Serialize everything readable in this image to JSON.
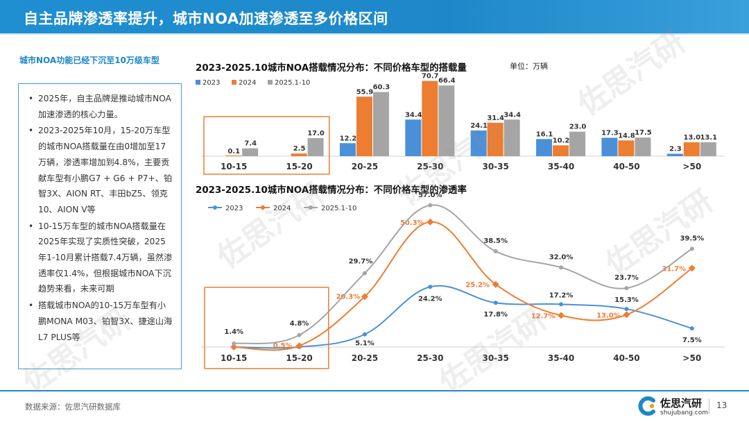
{
  "header": {
    "title": "自主品牌渗透率提升，城市NOA加速渗透至多价格区间"
  },
  "sidebar": {
    "subtitle": "城市NOA功能已经下沉至10万级车型",
    "bullets": [
      "2025年，自主品牌是推动城市NOA加速渗透的核心力量。",
      "2023-2025年10月，15-20万车型的城市NOA搭载量在由0增加至17万辆，渗透率增加到4.8%，主要贡献车型有小鹏G7 + G6 + P7+、铂智3X、AION RT、丰田bZ5、领克10、AION V等",
      "10-15万车型的城市NOA搭载量在2025年实现了实质性突破，2025年1-10月累计搭载7.4万辆，虽然渗透率仅1.4%，但根据城市NOA下沉趋势来看，未来可期",
      "搭载城市NOA的10-15万车型有小鹏MONA M03、铂智3X、捷途山海L7 PLUS等"
    ]
  },
  "chart_data": [
    {
      "type": "bar",
      "title": "2023-2025.10城市NOA搭载情况分布：不同价格车型的搭载量",
      "unit": "单位：万辆",
      "categories": [
        "10-15",
        "15-20",
        "20-25",
        "25-30",
        "30-35",
        "35-40",
        "40-50",
        ">50"
      ],
      "series": [
        {
          "name": "2023",
          "color": "#4a90d9",
          "values": [
            null,
            null,
            12.2,
            34.4,
            24.1,
            16.1,
            17.3,
            2.3
          ],
          "labels": [
            "",
            "",
            "12.2",
            "34.4",
            "24.1",
            "16.1",
            "17.3",
            "2.3"
          ]
        },
        {
          "name": "2024",
          "color": "#ed7d31",
          "values": [
            0.1,
            2.5,
            55.9,
            70.7,
            31.4,
            10.2,
            14.8,
            13.0
          ],
          "labels": [
            "0.1",
            "2.5",
            "55.9",
            "70.7",
            "31.4",
            "10.2",
            "14.8",
            "13.0"
          ]
        },
        {
          "name": "2025.1-10",
          "color": "#a5a5a5",
          "values": [
            7.4,
            17.0,
            60.3,
            66.4,
            34.4,
            23.0,
            17.5,
            13.1
          ],
          "labels": [
            "7.4",
            "17.0",
            "60.3",
            "66.4",
            "34.4",
            "23.0",
            "17.5",
            "13.1"
          ]
        }
      ],
      "ylim": [
        0,
        75
      ],
      "highlight_categories": [
        "10-15",
        "15-20"
      ]
    },
    {
      "type": "line",
      "title": "2023-2025.10城市NOA搭载情况分布：不同价格车型的渗透率",
      "categories": [
        "10-15",
        "15-20",
        "20-25",
        "25-30",
        "30-35",
        "35-40",
        "40-50",
        ">50"
      ],
      "series": [
        {
          "name": "2023",
          "color": "#4a90d9",
          "marker": "circle",
          "values": [
            0,
            0,
            5.1,
            24.2,
            17.8,
            17.2,
            15.3,
            7.5
          ],
          "labels": [
            "",
            "",
            "5.1%",
            "24.2%",
            "17.8%",
            "17.2%",
            "15.3%",
            "7.5%"
          ]
        },
        {
          "name": "2024",
          "color": "#ed7d31",
          "marker": "diamond",
          "values": [
            0,
            0.5,
            20.3,
            50.3,
            25.2,
            12.7,
            13.0,
            31.7
          ],
          "labels": [
            "",
            "0.5%",
            "20.3%",
            "50.3%",
            "25.2%",
            "12.7%",
            "13.0%",
            "31.7%"
          ]
        },
        {
          "name": "2025.1-10",
          "color": "#a5a5a5",
          "marker": "circle",
          "values": [
            1.4,
            4.8,
            29.7,
            57.0,
            38.5,
            32.0,
            23.7,
            39.5
          ],
          "labels": [
            "1.4%",
            "4.8%",
            "29.7%",
            "57.0%",
            "38.5%",
            "32.0%",
            "23.7%",
            "39.5%"
          ]
        }
      ],
      "ylim": [
        0,
        60
      ],
      "highlight_categories": [
        "10-15",
        "15-20"
      ]
    }
  ],
  "footer": {
    "source": "数据来源：佐思汽研数据库",
    "brand_name": "佐思汽研",
    "brand_url": "shujubang.com",
    "page_number": "13"
  },
  "watermark": "佐思汽研"
}
